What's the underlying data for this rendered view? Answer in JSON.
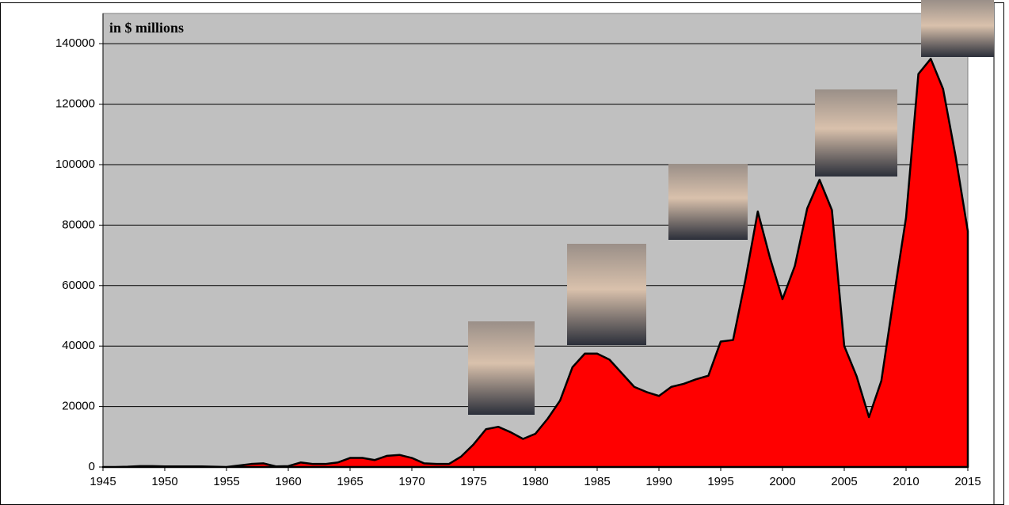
{
  "chart_data": {
    "type": "area",
    "title": "in $ millions",
    "x": [
      1945,
      1946,
      1947,
      1948,
      1949,
      1950,
      1951,
      1952,
      1953,
      1954,
      1955,
      1956,
      1957,
      1958,
      1959,
      1960,
      1961,
      1962,
      1963,
      1964,
      1965,
      1966,
      1967,
      1968,
      1969,
      1970,
      1971,
      1972,
      1973,
      1974,
      1975,
      1976,
      1977,
      1978,
      1979,
      1980,
      1981,
      1982,
      1983,
      1984,
      1985,
      1986,
      1987,
      1988,
      1989,
      1990,
      1991,
      1992,
      1993,
      1994,
      1995,
      1996,
      1997,
      1998,
      1999,
      2000,
      2001,
      2002,
      2003,
      2004,
      2005,
      2006,
      2007,
      2008,
      2009,
      2010,
      2011,
      2012,
      2013,
      2014,
      2015
    ],
    "values": [
      0,
      0,
      100,
      300,
      300,
      200,
      200,
      200,
      200,
      100,
      0,
      500,
      1000,
      1200,
      200,
      300,
      1500,
      1000,
      1000,
      1500,
      3000,
      3000,
      2300,
      3700,
      4000,
      3000,
      1200,
      1000,
      1000,
      3500,
      7500,
      12500,
      13300,
      11500,
      9300,
      11000,
      16000,
      22000,
      33000,
      37500,
      37500,
      35500,
      31000,
      26500,
      24800,
      23500,
      26500,
      27500,
      29000,
      30200,
      41500,
      42000,
      62000,
      84500,
      69000,
      55500,
      66500,
      85500,
      95000,
      85000,
      40000,
      30000,
      16500,
      28500,
      56000,
      82500,
      130000,
      135000,
      125000,
      103000,
      78000
    ],
    "color": "#ff0000",
    "xlim": [
      1945,
      2015
    ],
    "xticks": [
      1945,
      1950,
      1955,
      1960,
      1965,
      1970,
      1975,
      1980,
      1985,
      1990,
      1995,
      2000,
      2005,
      2010,
      2015
    ],
    "ylim": [
      0,
      150000
    ],
    "yticks": [
      0,
      20000,
      40000,
      60000,
      80000,
      100000,
      120000,
      140000
    ],
    "grid": true
  }
}
